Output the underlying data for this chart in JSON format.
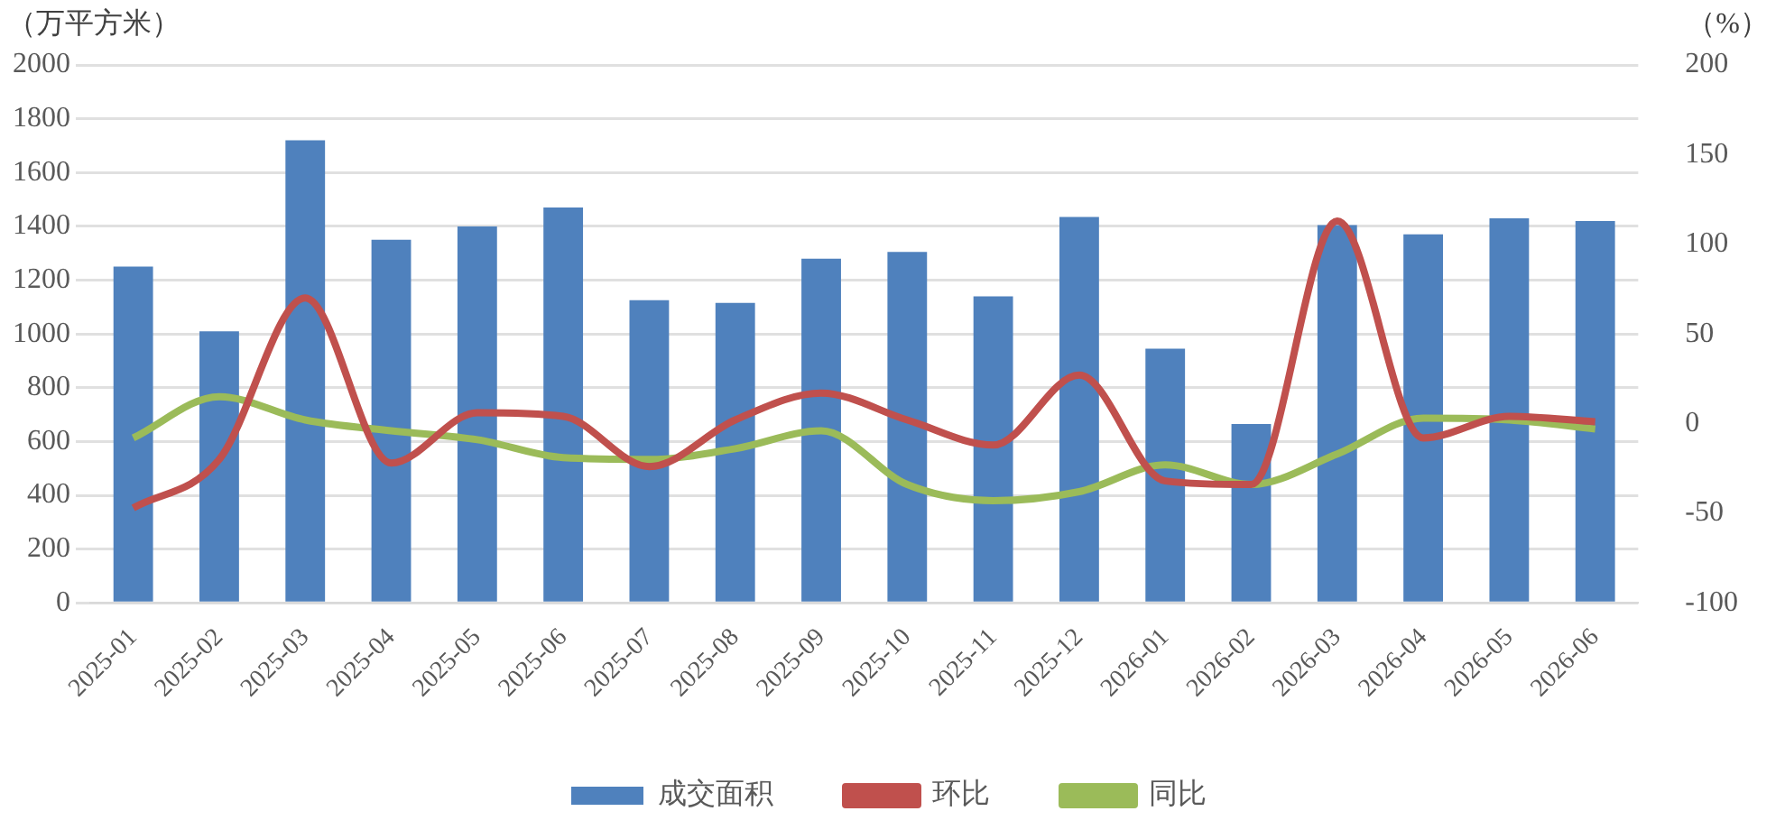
{
  "chart_data": {
    "type": "bar",
    "ylabel": "（万平方米）",
    "y2label": "（%）",
    "categories": [
      "2025-01",
      "2025-02",
      "2025-03",
      "2025-04",
      "2025-05",
      "2025-06",
      "2025-07",
      "2025-08",
      "2025-09",
      "2025-10",
      "2025-11",
      "2025-12",
      "2026-01",
      "2026-02",
      "2026-03",
      "2026-04",
      "2026-05",
      "2026-06"
    ],
    "series": [
      {
        "name": "成交面积",
        "color": "#4f81bd",
        "values": [
          1250,
          1010,
          1720,
          1350,
          1400,
          1470,
          1125,
          1115,
          1280,
          1305,
          1140,
          1435,
          945,
          665,
          1405,
          1370,
          1430,
          1420
        ]
      },
      {
        "name": "环比",
        "type": "line",
        "axis": "y2",
        "color": "#c0504d",
        "values": [
          -47,
          -20,
          70,
          -22,
          6,
          4,
          -24,
          2,
          17,
          2,
          -12,
          27,
          -32,
          -34,
          113,
          -8,
          4,
          1
        ]
      },
      {
        "name": "同比",
        "type": "line",
        "axis": "y2",
        "color": "#9bbb59",
        "values": [
          -8,
          15,
          2,
          -4,
          -9,
          -19,
          -20,
          -14,
          -4,
          -34,
          -43,
          -38,
          -23,
          -34,
          -17,
          3,
          2,
          -3
        ]
      }
    ],
    "ylim": [
      0,
      2000
    ],
    "yticks": [
      0,
      200,
      400,
      600,
      800,
      1000,
      1200,
      1400,
      1600,
      1800,
      2000
    ],
    "y2lim": [
      -100,
      200
    ],
    "y2ticks": [
      -100,
      -50,
      0,
      50,
      100,
      150,
      200
    ],
    "grid": "y",
    "legend": "bottom",
    "marker": "none",
    "line_style": "solid"
  }
}
